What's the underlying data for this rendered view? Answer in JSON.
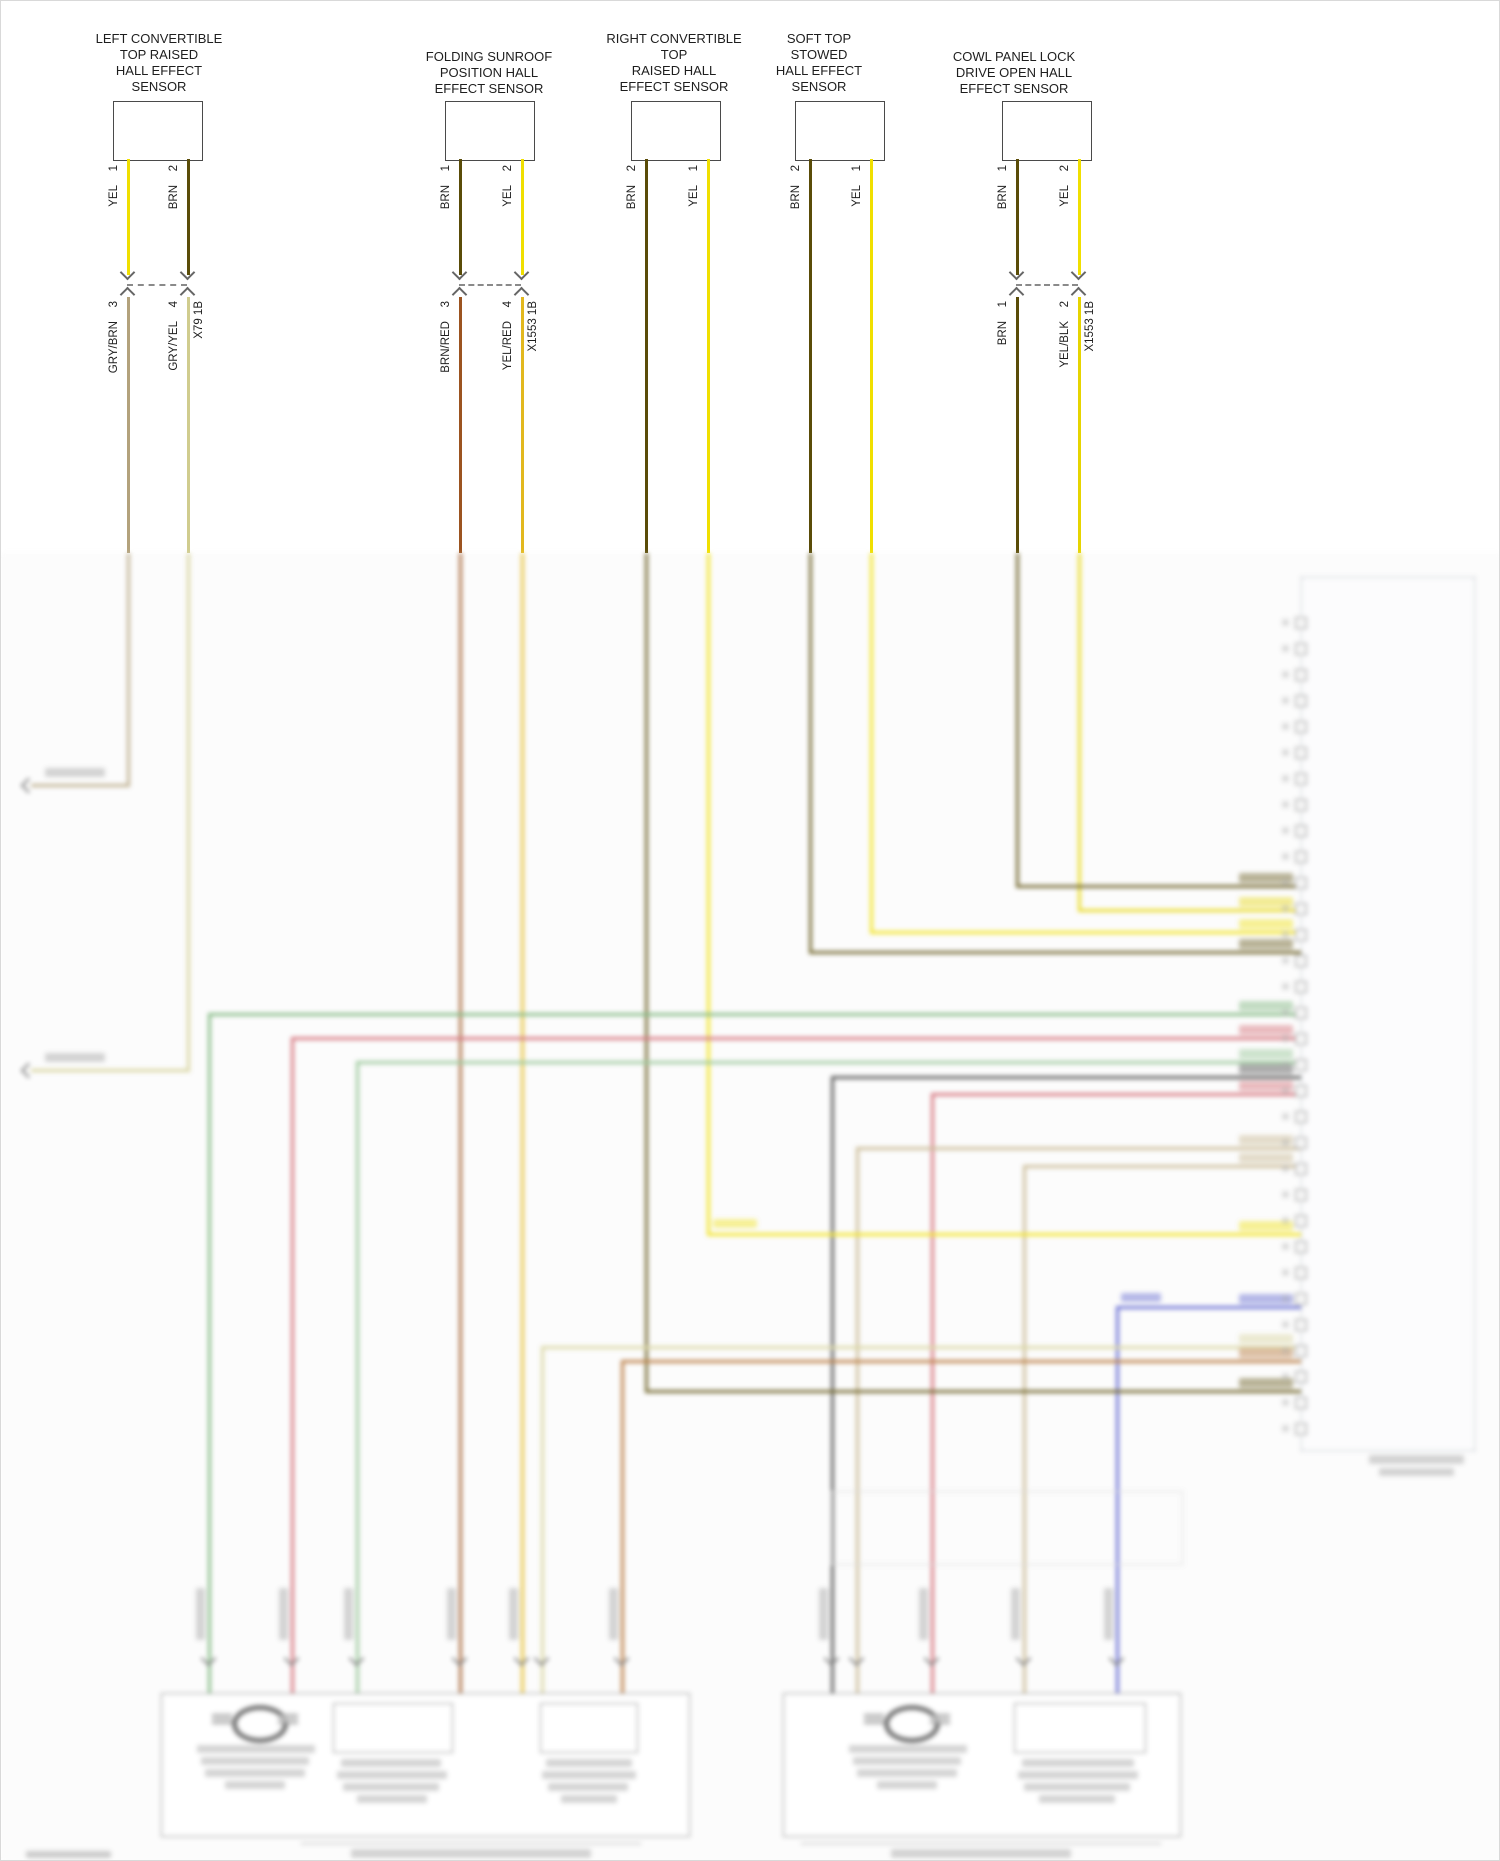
{
  "sensors": [
    {
      "title": "LEFT CONVERTIBLE\nTOP RAISED\nHALL EFFECT\nSENSOR",
      "pins": [
        {
          "num": "1",
          "wire": "YEL"
        },
        {
          "num": "2",
          "wire": "BRN"
        }
      ],
      "connector": {
        "pins": [
          {
            "num": "3",
            "wire": "GRY/BRN"
          },
          {
            "num": "4",
            "wire": "GRY/YEL"
          }
        ],
        "label": "X79 1B"
      }
    },
    {
      "title": "FOLDING SUNROOF\nPOSITION HALL\nEFFECT SENSOR",
      "pins": [
        {
          "num": "1",
          "wire": "BRN"
        },
        {
          "num": "2",
          "wire": "YEL"
        }
      ],
      "connector": {
        "pins": [
          {
            "num": "3",
            "wire": "BRN/RED"
          },
          {
            "num": "4",
            "wire": "YEL/RED"
          }
        ],
        "label": "X1553 1B"
      }
    },
    {
      "title": "RIGHT CONVERTIBLE\nTOP\nRAISED HALL\nEFFECT SENSOR",
      "pins": [
        {
          "num": "2",
          "wire": "BRN"
        },
        {
          "num": "1",
          "wire": "YEL"
        }
      ]
    },
    {
      "title": "SOFT TOP\nSTOWED\nHALL EFFECT\nSENSOR",
      "pins": [
        {
          "num": "2",
          "wire": "BRN"
        },
        {
          "num": "1",
          "wire": "YEL"
        }
      ]
    },
    {
      "title": "COWL PANEL LOCK\nDRIVE OPEN HALL\nEFFECT SENSOR",
      "pins": [
        {
          "num": "1",
          "wire": "BRN"
        },
        {
          "num": "2",
          "wire": "YEL"
        }
      ],
      "connector": {
        "pins": [
          {
            "num": "1",
            "wire": "BRN"
          },
          {
            "num": "2",
            "wire": "YEL/BLK"
          }
        ],
        "label": "X1553 1B"
      }
    }
  ],
  "wire_colors": {
    "YEL": "#f0df00",
    "BRN": "#5a4c08",
    "GRY_BRN": "#b3a27c",
    "GRY_YEL": "#d0cc8e",
    "BRN_RED": "#9c5420",
    "YEL_RED": "#e2b81e",
    "YEL_BLK": "#e6d400",
    "GRN": "#6fae6f",
    "GRN2": "#8cc08c",
    "RED": "#cf5f6a",
    "BLK": "#3c3c3c",
    "BLU": "#5058cc",
    "TAN": "#c2b086",
    "PALE": "#d4d096",
    "ORN": "#b06a28"
  }
}
